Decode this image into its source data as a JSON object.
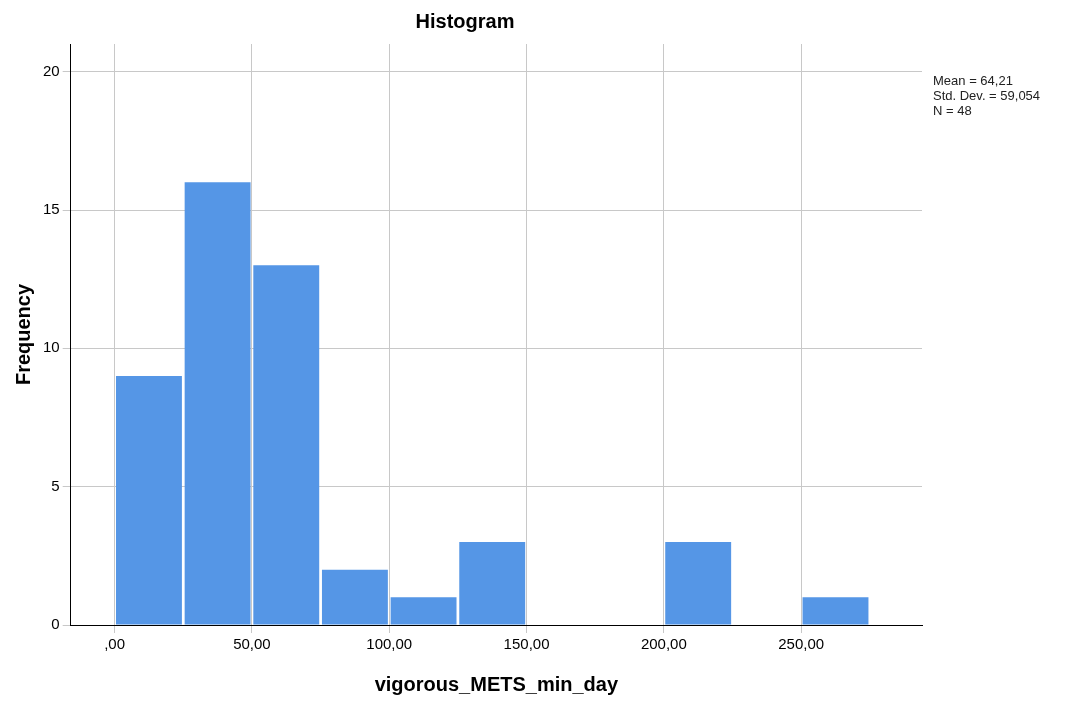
{
  "chart_data": {
    "type": "histogram",
    "title": "Histogram",
    "xlabel": "vigorous_METS_min_day",
    "ylabel": "Frequency",
    "bins": [
      0,
      25,
      50,
      75,
      100,
      125,
      150,
      175,
      200,
      225,
      250,
      275
    ],
    "values": [
      9,
      16,
      13,
      2,
      1,
      3,
      0,
      0,
      3,
      0,
      1
    ],
    "color": "#5596e6",
    "xlim": [
      -16,
      294
    ],
    "xticks": [
      {
        "value": 0,
        "label": ",00"
      },
      {
        "value": 50,
        "label": "50,00"
      },
      {
        "value": 100,
        "label": "100,00"
      },
      {
        "value": 150,
        "label": "150,00"
      },
      {
        "value": 200,
        "label": "200,00"
      },
      {
        "value": 250,
        "label": "250,00"
      }
    ],
    "ylim": [
      0,
      21
    ],
    "yticks": [
      0,
      5,
      10,
      15,
      20
    ],
    "grid": true,
    "legend": false,
    "annotations": [
      "Mean = 64,21",
      "Std. Dev. = 59,054",
      "N = 48"
    ]
  }
}
